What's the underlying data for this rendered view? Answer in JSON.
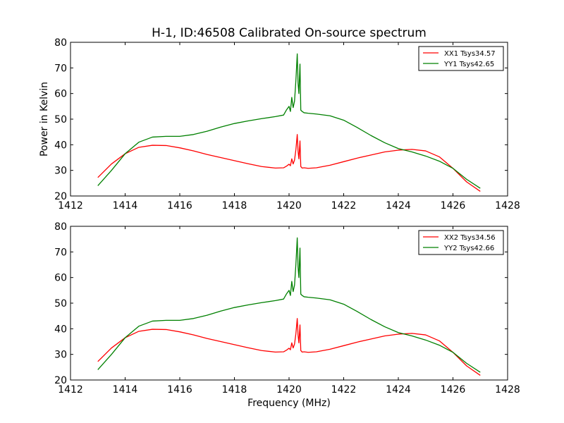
{
  "chart_data": [
    {
      "type": "line",
      "title": "H-1, ID:46508 Calibrated On-source spectrum",
      "ylabel": "Power in Kelvin",
      "xlabel": "",
      "xlim": [
        1412,
        1428
      ],
      "ylim": [
        20,
        80
      ],
      "xticks": [
        1412,
        1414,
        1416,
        1418,
        1420,
        1422,
        1424,
        1426,
        1428
      ],
      "yticks": [
        20,
        30,
        40,
        50,
        60,
        70,
        80
      ],
      "grid": false,
      "legend_position": "top-right",
      "series": [
        {
          "name": "XX1 Tsys34.57",
          "color": "#ff0000",
          "x": [
            1413.0,
            1413.5,
            1414.0,
            1414.5,
            1415.0,
            1415.5,
            1416.0,
            1416.5,
            1417.0,
            1417.5,
            1418.0,
            1418.5,
            1419.0,
            1419.5,
            1419.8,
            1419.9,
            1420.0,
            1420.05,
            1420.1,
            1420.15,
            1420.2,
            1420.25,
            1420.3,
            1420.33,
            1420.36,
            1420.4,
            1420.43,
            1420.48,
            1420.55,
            1420.7,
            1421.0,
            1421.5,
            1422.0,
            1422.5,
            1423.0,
            1423.5,
            1424.0,
            1424.5,
            1425.0,
            1425.5,
            1426.0,
            1426.5,
            1427.0
          ],
          "y": [
            27.2,
            32.5,
            36.5,
            39.0,
            39.8,
            39.7,
            38.8,
            37.6,
            36.2,
            35.0,
            33.8,
            32.6,
            31.5,
            30.9,
            31.0,
            31.6,
            32.4,
            31.8,
            34.5,
            32.5,
            34.0,
            38.0,
            44.0,
            37.5,
            34.5,
            41.5,
            31.5,
            30.9,
            31.0,
            30.8,
            31.0,
            32.0,
            33.4,
            34.8,
            36.0,
            37.2,
            37.9,
            38.2,
            37.6,
            35.3,
            30.8,
            25.5,
            21.8
          ]
        },
        {
          "name": "YY1 Tsys42.65",
          "color": "#008000",
          "x": [
            1413.0,
            1413.5,
            1414.0,
            1414.5,
            1415.0,
            1415.5,
            1416.0,
            1416.5,
            1417.0,
            1417.5,
            1418.0,
            1418.5,
            1419.0,
            1419.5,
            1419.8,
            1419.9,
            1420.0,
            1420.05,
            1420.1,
            1420.15,
            1420.2,
            1420.25,
            1420.3,
            1420.33,
            1420.36,
            1420.4,
            1420.43,
            1420.48,
            1420.55,
            1420.7,
            1421.0,
            1421.5,
            1422.0,
            1422.5,
            1423.0,
            1423.5,
            1424.0,
            1424.5,
            1425.0,
            1425.5,
            1426.0,
            1426.5,
            1427.0
          ],
          "y": [
            24.0,
            30.0,
            36.5,
            41.0,
            43.0,
            43.3,
            43.3,
            44.0,
            45.3,
            46.9,
            48.3,
            49.3,
            50.2,
            51.0,
            51.6,
            53.5,
            55.0,
            53.0,
            58.5,
            54.5,
            57.0,
            65.0,
            75.5,
            64.0,
            60.0,
            71.5,
            53.5,
            53.0,
            52.5,
            52.3,
            52.0,
            51.3,
            49.6,
            46.7,
            43.6,
            40.8,
            38.5,
            37.2,
            35.6,
            33.6,
            30.8,
            26.5,
            23.0
          ]
        }
      ]
    },
    {
      "type": "line",
      "title": "",
      "ylabel": "",
      "xlabel": "Frequency (MHz)",
      "xlim": [
        1412,
        1428
      ],
      "ylim": [
        20,
        80
      ],
      "xticks": [
        1412,
        1414,
        1416,
        1418,
        1420,
        1422,
        1424,
        1426,
        1428
      ],
      "yticks": [
        20,
        30,
        40,
        50,
        60,
        70,
        80
      ],
      "grid": false,
      "legend_position": "top-right",
      "series": [
        {
          "name": "XX2 Tsys34.56",
          "color": "#ff0000",
          "x": [
            1413.0,
            1413.5,
            1414.0,
            1414.5,
            1415.0,
            1415.5,
            1416.0,
            1416.5,
            1417.0,
            1417.5,
            1418.0,
            1418.5,
            1419.0,
            1419.5,
            1419.8,
            1419.9,
            1420.0,
            1420.05,
            1420.1,
            1420.15,
            1420.2,
            1420.25,
            1420.3,
            1420.33,
            1420.36,
            1420.4,
            1420.43,
            1420.48,
            1420.55,
            1420.7,
            1421.0,
            1421.5,
            1422.0,
            1422.5,
            1423.0,
            1423.5,
            1424.0,
            1424.5,
            1425.0,
            1425.5,
            1426.0,
            1426.5,
            1427.0
          ],
          "y": [
            27.2,
            32.5,
            36.5,
            39.0,
            39.8,
            39.7,
            38.8,
            37.6,
            36.2,
            35.0,
            33.8,
            32.6,
            31.5,
            30.9,
            31.0,
            31.6,
            32.4,
            31.8,
            34.5,
            32.5,
            34.0,
            38.0,
            44.0,
            37.5,
            34.5,
            41.5,
            31.5,
            30.9,
            31.0,
            30.8,
            31.0,
            32.0,
            33.4,
            34.8,
            36.0,
            37.2,
            37.9,
            38.2,
            37.6,
            35.3,
            30.8,
            25.5,
            21.8
          ]
        },
        {
          "name": "YY2 Tsys42.66",
          "color": "#008000",
          "x": [
            1413.0,
            1413.5,
            1414.0,
            1414.5,
            1415.0,
            1415.5,
            1416.0,
            1416.5,
            1417.0,
            1417.5,
            1418.0,
            1418.5,
            1419.0,
            1419.5,
            1419.8,
            1419.9,
            1420.0,
            1420.05,
            1420.1,
            1420.15,
            1420.2,
            1420.25,
            1420.3,
            1420.33,
            1420.36,
            1420.4,
            1420.43,
            1420.48,
            1420.55,
            1420.7,
            1421.0,
            1421.5,
            1422.0,
            1422.5,
            1423.0,
            1423.5,
            1424.0,
            1424.5,
            1425.0,
            1425.5,
            1426.0,
            1426.5,
            1427.0
          ],
          "y": [
            24.0,
            30.0,
            36.5,
            41.0,
            43.0,
            43.3,
            43.3,
            44.0,
            45.3,
            46.9,
            48.3,
            49.3,
            50.2,
            51.0,
            51.6,
            53.5,
            55.0,
            53.0,
            58.5,
            54.5,
            57.0,
            65.0,
            75.5,
            64.0,
            60.0,
            71.5,
            53.5,
            53.0,
            52.5,
            52.3,
            52.0,
            51.3,
            49.6,
            46.7,
            43.6,
            40.8,
            38.5,
            37.2,
            35.6,
            33.6,
            30.8,
            26.5,
            23.0
          ]
        }
      ]
    }
  ]
}
